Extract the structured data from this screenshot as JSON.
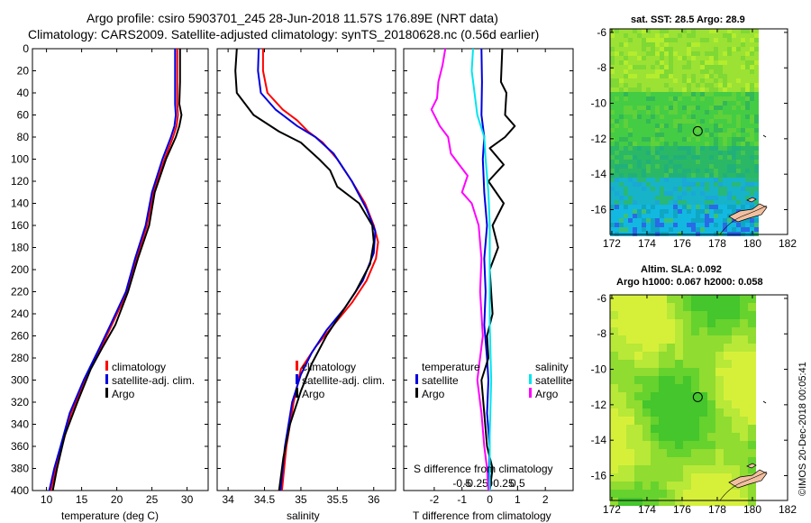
{
  "header": {
    "line1": "Argo profile: csiro 5903701_245 28-Jun-2018 11.57S 176.89E (NRT data)",
    "line2": "Climatology: CARS2009. Satellite-adjusted climatology: synTS_20180628.nc (0.56d earlier)"
  },
  "colors": {
    "climatology": "#ff0000",
    "satellite_adj": "#0000dd",
    "argo": "#000000",
    "salinity_diff": "#ff00ff",
    "salinity_sat": "#00e5ee",
    "land": "#f2c0a0"
  },
  "chart_data": [
    {
      "type": "line",
      "title": "",
      "xlabel": "temperature (deg C)",
      "ylabel": "",
      "xlim": [
        8,
        33
      ],
      "ylim": [
        400,
        0
      ],
      "xticks": [
        "10",
        "15",
        "20",
        "25",
        "30"
      ],
      "yticks": [
        "0",
        "20",
        "40",
        "60",
        "80",
        "100",
        "120",
        "140",
        "160",
        "180",
        "200",
        "220",
        "240",
        "260",
        "280",
        "300",
        "320",
        "340",
        "360",
        "380",
        "400"
      ],
      "legend": [
        "climatology",
        "satellite-adj. clim.",
        "Argo"
      ],
      "legend_position": "lower-right",
      "series": [
        {
          "name": "climatology",
          "color": "#ff0000",
          "points": [
            [
              28.6,
              0
            ],
            [
              28.6,
              30
            ],
            [
              28.6,
              50
            ],
            [
              28.7,
              60
            ],
            [
              28.5,
              70
            ],
            [
              28.0,
              80
            ],
            [
              26.8,
              100
            ],
            [
              25.2,
              130
            ],
            [
              24.3,
              160
            ],
            [
              22.8,
              190
            ],
            [
              21.5,
              220
            ],
            [
              19.3,
              250
            ],
            [
              17.8,
              270
            ],
            [
              15.5,
              300
            ],
            [
              13.5,
              330
            ],
            [
              12.2,
              360
            ],
            [
              11.3,
              380
            ],
            [
              10.6,
              400
            ]
          ]
        },
        {
          "name": "satellite-adj. clim.",
          "color": "#0000dd",
          "points": [
            [
              28.3,
              0
            ],
            [
              28.3,
              30
            ],
            [
              28.3,
              50
            ],
            [
              28.4,
              60
            ],
            [
              28.2,
              70
            ],
            [
              27.7,
              80
            ],
            [
              26.5,
              100
            ],
            [
              25.0,
              130
            ],
            [
              24.1,
              160
            ],
            [
              22.6,
              190
            ],
            [
              21.3,
              220
            ],
            [
              19.1,
              250
            ],
            [
              17.6,
              270
            ],
            [
              15.3,
              300
            ],
            [
              13.3,
              330
            ],
            [
              12.0,
              360
            ],
            [
              11.1,
              380
            ],
            [
              10.4,
              400
            ]
          ]
        },
        {
          "name": "Argo",
          "color": "#000000",
          "points": [
            [
              29.0,
              0
            ],
            [
              29.0,
              30
            ],
            [
              28.9,
              50
            ],
            [
              29.2,
              60
            ],
            [
              28.9,
              70
            ],
            [
              28.4,
              80
            ],
            [
              27.0,
              100
            ],
            [
              25.4,
              130
            ],
            [
              24.6,
              160
            ],
            [
              23.0,
              190
            ],
            [
              21.6,
              220
            ],
            [
              19.8,
              250
            ],
            [
              18.0,
              270
            ],
            [
              16.3,
              290
            ],
            [
              14.4,
              320
            ],
            [
              12.6,
              350
            ],
            [
              11.5,
              380
            ],
            [
              10.9,
              400
            ]
          ]
        }
      ]
    },
    {
      "type": "line",
      "title": "",
      "xlabel": "salinity",
      "ylabel": "",
      "xlim": [
        33.85,
        36.3
      ],
      "ylim": [
        400,
        0
      ],
      "xticks": [
        "34",
        "34.5",
        "35",
        "35.5",
        "36"
      ],
      "legend": [
        "climatology",
        "satellite-adj. clim.",
        "Argo"
      ],
      "legend_position": "lower-right",
      "series": [
        {
          "name": "climatology",
          "color": "#ff0000",
          "points": [
            [
              34.48,
              0
            ],
            [
              34.48,
              20
            ],
            [
              34.54,
              40
            ],
            [
              34.75,
              55
            ],
            [
              34.95,
              65
            ],
            [
              35.1,
              75
            ],
            [
              35.3,
              85
            ],
            [
              35.5,
              100
            ],
            [
              35.7,
              120
            ],
            [
              35.88,
              140
            ],
            [
              36.0,
              160
            ],
            [
              36.06,
              175
            ],
            [
              36.03,
              190
            ],
            [
              35.9,
              210
            ],
            [
              35.7,
              230
            ],
            [
              35.45,
              250
            ],
            [
              35.2,
              270
            ],
            [
              35.0,
              290
            ],
            [
              34.9,
              320
            ],
            [
              34.8,
              360
            ],
            [
              34.74,
              400
            ]
          ]
        },
        {
          "name": "satellite-adj. clim.",
          "color": "#0000dd",
          "points": [
            [
              34.42,
              0
            ],
            [
              34.41,
              20
            ],
            [
              34.45,
              40
            ],
            [
              34.65,
              55
            ],
            [
              34.95,
              70
            ],
            [
              35.2,
              80
            ],
            [
              35.45,
              95
            ],
            [
              35.7,
              120
            ],
            [
              35.9,
              145
            ],
            [
              36.02,
              165
            ],
            [
              36.0,
              185
            ],
            [
              35.85,
              210
            ],
            [
              35.6,
              235
            ],
            [
              35.35,
              255
            ],
            [
              35.15,
              275
            ],
            [
              35.0,
              295
            ],
            [
              34.88,
              320
            ],
            [
              34.78,
              360
            ],
            [
              34.72,
              400
            ]
          ]
        },
        {
          "name": "Argo",
          "color": "#000000",
          "points": [
            [
              34.12,
              0
            ],
            [
              34.1,
              20
            ],
            [
              34.12,
              40
            ],
            [
              34.35,
              60
            ],
            [
              34.7,
              75
            ],
            [
              35.0,
              85
            ],
            [
              35.25,
              100
            ],
            [
              35.4,
              110
            ],
            [
              35.5,
              125
            ],
            [
              35.8,
              140
            ],
            [
              35.98,
              160
            ],
            [
              36.0,
              175
            ],
            [
              35.95,
              195
            ],
            [
              35.75,
              220
            ],
            [
              35.5,
              245
            ],
            [
              35.35,
              260
            ],
            [
              35.15,
              285
            ],
            [
              35.0,
              310
            ],
            [
              34.85,
              340
            ],
            [
              34.76,
              370
            ],
            [
              34.7,
              400
            ]
          ]
        }
      ]
    },
    {
      "type": "line",
      "title": "",
      "xlabel": "T difference from climatology",
      "top_axis_label": "S difference from climatology",
      "ylabel": "",
      "xlim": [
        -3.1,
        3.0
      ],
      "ylim": [
        400,
        0
      ],
      "xticks": [
        "-2",
        "-1",
        "0",
        "1",
        "2"
      ],
      "top_ticks": [
        "-0.5",
        "-0.25",
        "0",
        "0.25",
        "0.5"
      ],
      "legend_left": [
        "temperature",
        "satellite",
        "Argo"
      ],
      "legend_right": [
        "salinity",
        "satellite",
        "Argo"
      ],
      "legend_position": "lower",
      "series": [
        {
          "name": "temperature satellite",
          "color": "#0000dd",
          "points": [
            [
              -0.3,
              0
            ],
            [
              -0.28,
              30
            ],
            [
              -0.3,
              60
            ],
            [
              -0.2,
              80
            ],
            [
              -0.25,
              100
            ],
            [
              -0.2,
              130
            ],
            [
              -0.1,
              160
            ],
            [
              -0.2,
              190
            ],
            [
              -0.15,
              220
            ],
            [
              -0.2,
              250
            ],
            [
              -0.1,
              280
            ],
            [
              -0.05,
              300
            ],
            [
              -0.1,
              330
            ],
            [
              0.0,
              360
            ],
            [
              -0.05,
              400
            ]
          ]
        },
        {
          "name": "temperature Argo",
          "color": "#000000",
          "points": [
            [
              0.45,
              0
            ],
            [
              0.4,
              30
            ],
            [
              0.6,
              40
            ],
            [
              0.55,
              60
            ],
            [
              0.9,
              70
            ],
            [
              0.55,
              80
            ],
            [
              0.0,
              90
            ],
            [
              0.5,
              105
            ],
            [
              -0.05,
              120
            ],
            [
              0.5,
              140
            ],
            [
              0.1,
              160
            ],
            [
              0.3,
              180
            ],
            [
              0.0,
              200
            ],
            [
              0.1,
              240
            ],
            [
              -0.1,
              260
            ],
            [
              -0.05,
              280
            ],
            [
              -0.3,
              300
            ],
            [
              -0.2,
              330
            ],
            [
              -0.1,
              360
            ],
            [
              0.1,
              380
            ],
            [
              0.0,
              400
            ]
          ]
        },
        {
          "name": "salinity satellite",
          "color": "#00e5ee",
          "points": [
            [
              -0.6,
              0
            ],
            [
              -0.65,
              20
            ],
            [
              -0.55,
              40
            ],
            [
              -0.45,
              60
            ],
            [
              -0.2,
              80
            ],
            [
              -0.15,
              100
            ],
            [
              -0.05,
              130
            ],
            [
              0.0,
              160
            ],
            [
              0.0,
              200
            ],
            [
              0.0,
              250
            ],
            [
              0.05,
              300
            ],
            [
              0.0,
              350
            ],
            [
              0.0,
              400
            ]
          ]
        },
        {
          "name": "salinity Argo",
          "color": "#ff00ff",
          "points": [
            [
              -1.6,
              0
            ],
            [
              -1.7,
              15
            ],
            [
              -1.85,
              30
            ],
            [
              -1.9,
              45
            ],
            [
              -2.1,
              55
            ],
            [
              -1.8,
              70
            ],
            [
              -1.5,
              80
            ],
            [
              -1.4,
              95
            ],
            [
              -1.1,
              105
            ],
            [
              -0.8,
              115
            ],
            [
              -1.0,
              130
            ],
            [
              -0.65,
              140
            ],
            [
              -0.4,
              160
            ],
            [
              -0.3,
              190
            ],
            [
              -0.35,
              220
            ],
            [
              -0.25,
              260
            ],
            [
              -0.45,
              300
            ],
            [
              -0.3,
              330
            ],
            [
              -0.2,
              360
            ],
            [
              -0.1,
              380
            ],
            [
              -0.05,
              400
            ]
          ]
        }
      ]
    }
  ],
  "maps": {
    "sst": {
      "title": "sat. SST: 28.5 Argo: 28.9",
      "xticks": [
        "172",
        "174",
        "176",
        "178",
        "180",
        "182"
      ],
      "yticks": [
        "-6",
        "-8",
        "-10",
        "-12",
        "-14",
        "-16"
      ],
      "argo_lon": 176.89,
      "argo_lat": -11.57
    },
    "sla": {
      "title_line1": "Altim. SLA: 0.092",
      "title_line2": "Argo h1000: 0.067 h2000: 0.058",
      "xticks": [
        "172",
        "174",
        "176",
        "178",
        "180",
        "182"
      ],
      "yticks": [
        "-6",
        "-8",
        "-10",
        "-12",
        "-14",
        "-16"
      ],
      "argo_lon": 176.89,
      "argo_lat": -11.57
    }
  },
  "credit": "©IMOS 20-Dec-2018 00:05:41"
}
